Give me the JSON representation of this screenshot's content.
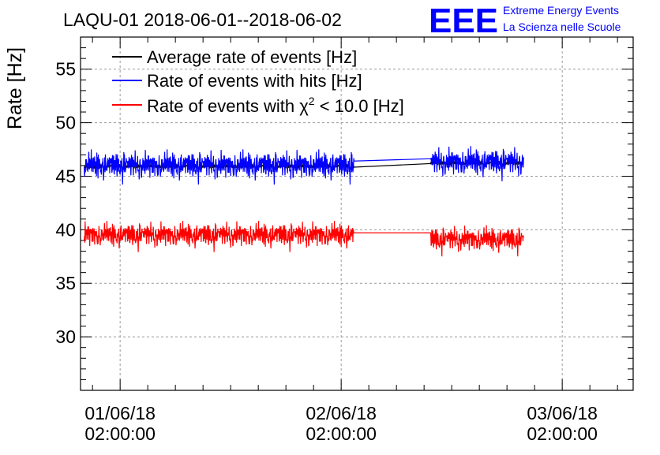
{
  "chart_data": {
    "type": "line",
    "title": "LAQU-01 2018-06-01--2018-06-02",
    "ylabel": "Rate [Hz]",
    "xlabel": "",
    "ylim": [
      25,
      58
    ],
    "xlim_hours": [
      -4.3,
      55.7
    ],
    "grid": true,
    "yticks": [
      30,
      35,
      40,
      45,
      50,
      55
    ],
    "xticks": [
      {
        "hour": 0,
        "date": "01/06/18",
        "time": "02:00:00"
      },
      {
        "hour": 24,
        "date": "02/06/18",
        "time": "02:00:00"
      },
      {
        "hour": 48,
        "date": "03/06/18",
        "time": "02:00:00"
      }
    ],
    "legend_position": "top-left",
    "series": [
      {
        "name": "Average rate of events [Hz]",
        "color": "#000000",
        "segments": [
          {
            "start_hour": -3.9,
            "end_hour": 25.4,
            "mean": 45.9,
            "noise": 0.9
          },
          {
            "start_hour": 33.7,
            "end_hour": 43.8,
            "mean": 46.2,
            "noise": 0.9
          }
        ]
      },
      {
        "name": "Rate of events with hits [Hz]",
        "color": "#0000ff",
        "segments": [
          {
            "start_hour": -3.9,
            "end_hour": 25.4,
            "mean": 45.9,
            "noise": 0.9
          },
          {
            "start_hour": 33.7,
            "end_hour": 43.8,
            "mean": 46.2,
            "noise": 0.9
          }
        ]
      },
      {
        "name": "Rate of events with χ² < 10.0 [Hz]",
        "legend_prefix": "Rate of events with ",
        "legend_chi": "χ",
        "legend_sup": "2",
        "legend_suffix": " < 10.0 [Hz]",
        "color": "#ff0000",
        "segments": [
          {
            "start_hour": -3.9,
            "end_hour": 25.4,
            "mean": 39.4,
            "noise": 0.8
          },
          {
            "start_hour": 33.7,
            "end_hour": 43.8,
            "mean": 39.0,
            "noise": 0.8
          }
        ]
      }
    ]
  },
  "logo": {
    "text": "EEE",
    "line1": "Extreme Energy Events",
    "line2": "La Scienza nelle Scuole",
    "color": "#0000ff"
  }
}
